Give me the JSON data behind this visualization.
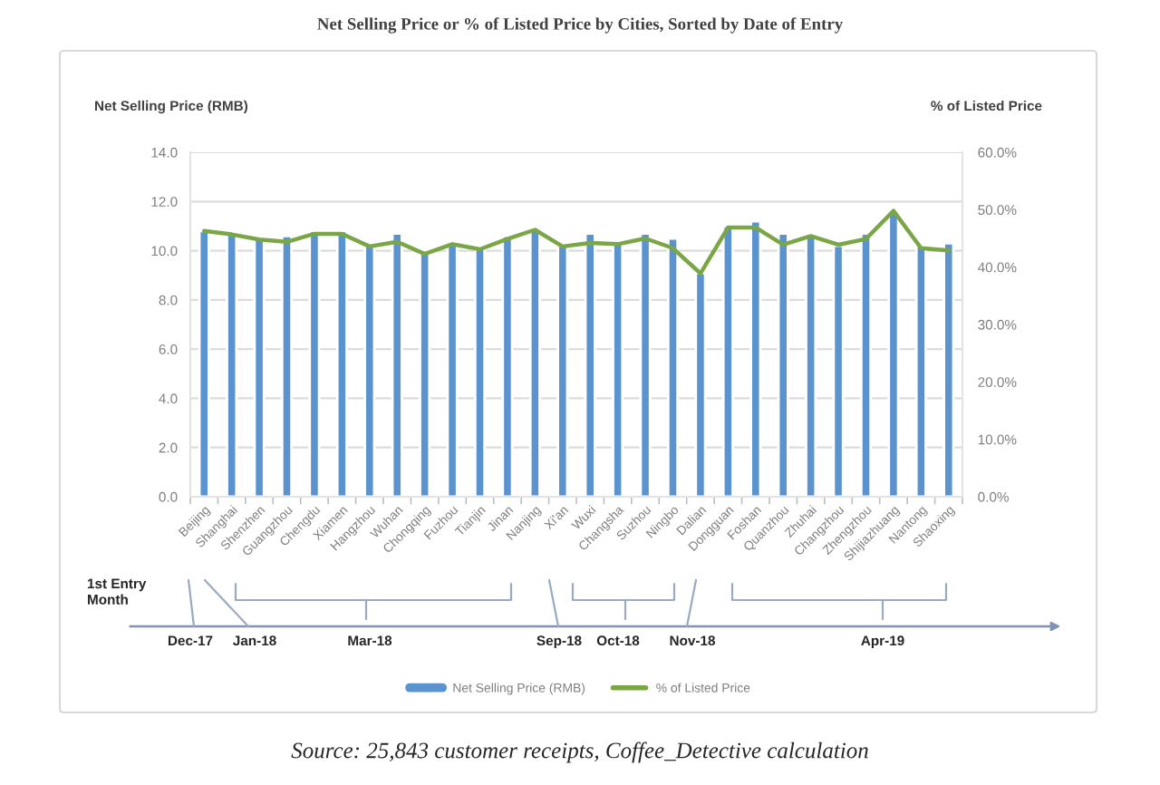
{
  "chart_data": {
    "type": "bar",
    "title": "Net Selling Price or % of Listed Price by Cities, Sorted by Date of Entry",
    "ylabel": "Net Selling Price (RMB)",
    "y2label": "% of Listed Price",
    "categories": [
      "Beijing",
      "Shanghai",
      "Shenzhen",
      "Guangzhou",
      "Chengdu",
      "Xiamen",
      "Hangzhou",
      "Wuhan",
      "Chongqing",
      "Fuzhou",
      "Tianjin",
      "Jinan",
      "Nanjing",
      "Xi'an",
      "Wuxi",
      "Changsha",
      "Suzhou",
      "Ningbo",
      "Dalian",
      "Dongguan",
      "Foshan",
      "Quanzhou",
      "Zhuhai",
      "Changzhou",
      "Zhengzhou",
      "Shijiazhuang",
      "Nantong",
      "Shaoxing"
    ],
    "series": [
      {
        "name": "Net Selling Price (RMB)",
        "color": "#5b93cf",
        "values": [
          10.8,
          10.7,
          10.5,
          10.6,
          10.8,
          10.8,
          10.2,
          10.7,
          10.0,
          10.3,
          10.1,
          10.6,
          10.9,
          10.2,
          10.7,
          10.3,
          10.7,
          10.5,
          9.1,
          11.0,
          11.2,
          10.7,
          10.7,
          10.2,
          10.7,
          11.6,
          10.2,
          10.3
        ]
      },
      {
        "name": "% of Listed Price",
        "type": "line",
        "axis": "y2",
        "color": "#7aa646",
        "values": [
          46.3,
          45.7,
          44.8,
          44.4,
          45.8,
          45.8,
          43.6,
          44.4,
          42.3,
          44.0,
          43.1,
          44.9,
          46.5,
          43.6,
          44.2,
          44.0,
          45.0,
          43.3,
          38.9,
          46.9,
          46.9,
          43.9,
          45.4,
          43.9,
          44.9,
          49.8,
          43.3,
          42.9
        ]
      }
    ],
    "ylim": [
      0,
      14
    ],
    "yticks": [
      {
        "value": 0,
        "label": "0.0"
      },
      {
        "value": 2,
        "label": "2.0"
      },
      {
        "value": 4,
        "label": "4.0"
      },
      {
        "value": 6,
        "label": "6.0"
      },
      {
        "value": 8,
        "label": "8.0"
      },
      {
        "value": 10,
        "label": "10.0"
      },
      {
        "value": 12,
        "label": "12.0"
      },
      {
        "value": 14,
        "label": "14.0"
      }
    ],
    "y2lim": [
      0,
      60
    ],
    "y2ticks": [
      {
        "value": 0,
        "label": "0.0%"
      },
      {
        "value": 10,
        "label": "10.0%"
      },
      {
        "value": 20,
        "label": "20.0%"
      },
      {
        "value": 30,
        "label": "30.0%"
      },
      {
        "value": 40,
        "label": "40.0%"
      },
      {
        "value": 50,
        "label": "50.0%"
      },
      {
        "value": 60,
        "label": "60.0%"
      }
    ],
    "grid": "y",
    "legend": "bottom",
    "annotations": [
      "1st Entry\nMonth",
      "Dec-17",
      "Jan-18",
      "Mar-18",
      "Sep-18",
      "Oct-18",
      "Nov-18",
      "Apr-19",
      "Source: 25,843 customer receipts, Coffee_Detective calculation"
    ]
  }
}
